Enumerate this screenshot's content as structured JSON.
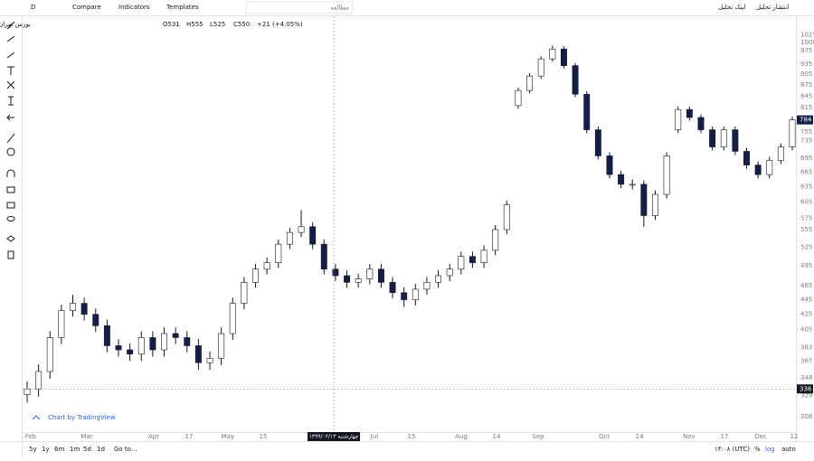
{
  "toolbar": {
    "interval": "D",
    "compare": "Compare",
    "indicators": "Indicators",
    "templates": "Templates",
    "search": "مطالعه",
    "publish": "انتشار تحلیل",
    "share": "اینک تحلیل"
  },
  "legend": {
    "symbol": "بورس تهران ,D ,نوسازی و ساختمان تهران",
    "ohlc": [
      "O531",
      "H555",
      "L525",
      "C550",
      "+21 (+4.05%)"
    ]
  },
  "watermark": "Chart by TradingView",
  "time_labels": [
    "Feb",
    "Mar",
    "Apr",
    "17",
    "May",
    "15",
    "Jul",
    "15",
    "Aug",
    "14",
    "Sep",
    "Oct",
    "14",
    "Nov",
    "17",
    "Dec",
    "12"
  ],
  "crosshair_date": "چهارشنبه ۱۳۹۹/۰۲/۱۳",
  "ranges": [
    "5y",
    "1y",
    "6m",
    "1m",
    "5d",
    "1d",
    "Go to..."
  ],
  "status": {
    "time": "۱۴:۰۸ (UTC)",
    "percent": "%",
    "log": "log",
    "auto": "auto"
  },
  "chart_data": {
    "type": "candlestick",
    "log_scale": true,
    "up_color": "#ffffff",
    "down_color": "#131e4a",
    "border_color": "#131722",
    "ylim": [
      295,
      1050
    ],
    "yticks": [
      308,
      329,
      348,
      367,
      383,
      405,
      425,
      445,
      465,
      495,
      525,
      555,
      575,
      605,
      635,
      665,
      695,
      735,
      755,
      785,
      815,
      845,
      875,
      905,
      935,
      975,
      1000,
      1025
    ],
    "crosshair_price": 336,
    "last_price": 784,
    "open": [
      330,
      336,
      355,
      395,
      430,
      440,
      425,
      410,
      385,
      380,
      375,
      395,
      380,
      400,
      395,
      385,
      365,
      370,
      400,
      440,
      470,
      490,
      500,
      530,
      550,
      560,
      530,
      490,
      480,
      470,
      475,
      490,
      470,
      455,
      445,
      460,
      470,
      480,
      490,
      510,
      500,
      520,
      555,
      820,
      860,
      900,
      950,
      980,
      930,
      850,
      760,
      700,
      660,
      640,
      640,
      580,
      620,
      760,
      810,
      790,
      760,
      720,
      760,
      710,
      680,
      660,
      690,
      720
    ],
    "high": [
      344,
      363,
      403,
      438,
      452,
      448,
      433,
      418,
      393,
      388,
      403,
      403,
      408,
      408,
      403,
      393,
      378,
      408,
      448,
      478,
      498,
      508,
      538,
      558,
      590,
      568,
      538,
      498,
      488,
      483,
      498,
      498,
      478,
      463,
      468,
      478,
      488,
      498,
      518,
      518,
      528,
      563,
      608,
      868,
      908,
      958,
      990,
      988,
      938,
      858,
      768,
      708,
      668,
      650,
      648,
      628,
      708,
      818,
      818,
      798,
      768,
      768,
      768,
      718,
      688,
      698,
      728,
      792
    ],
    "low": [
      322,
      328,
      347,
      387,
      422,
      417,
      402,
      377,
      372,
      367,
      367,
      372,
      372,
      387,
      377,
      357,
      357,
      362,
      392,
      432,
      462,
      482,
      492,
      522,
      542,
      522,
      482,
      472,
      462,
      462,
      467,
      462,
      447,
      435,
      437,
      452,
      462,
      472,
      482,
      492,
      492,
      512,
      547,
      812,
      852,
      892,
      942,
      922,
      842,
      752,
      692,
      652,
      632,
      630,
      560,
      572,
      612,
      752,
      782,
      752,
      712,
      712,
      702,
      672,
      652,
      652,
      682,
      712
    ],
    "close": [
      336,
      355,
      395,
      430,
      440,
      425,
      410,
      385,
      380,
      375,
      395,
      380,
      400,
      395,
      385,
      365,
      370,
      400,
      440,
      470,
      490,
      500,
      530,
      550,
      560,
      530,
      490,
      480,
      470,
      475,
      490,
      470,
      455,
      445,
      460,
      470,
      480,
      490,
      510,
      500,
      520,
      555,
      600,
      860,
      900,
      950,
      980,
      930,
      850,
      760,
      700,
      660,
      640,
      640,
      580,
      620,
      700,
      810,
      790,
      760,
      720,
      760,
      710,
      680,
      660,
      690,
      720,
      784
    ]
  }
}
